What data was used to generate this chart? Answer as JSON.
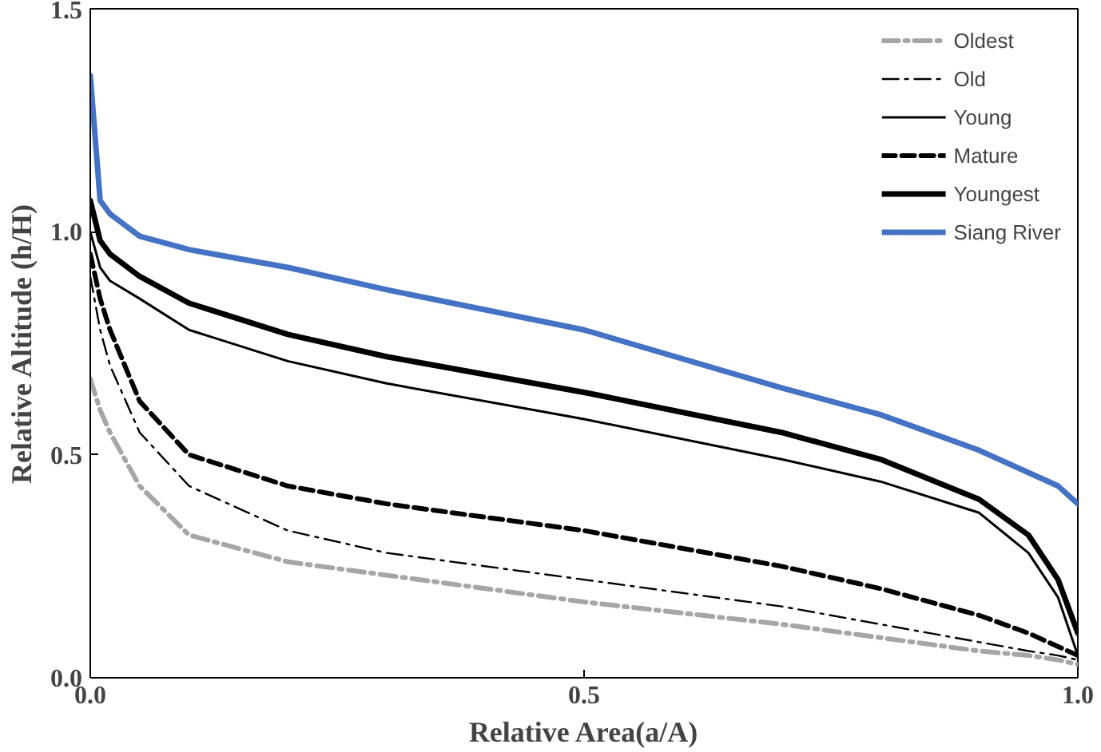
{
  "chart_data": {
    "type": "line",
    "xlabel": "Relative Area(a/A)",
    "ylabel": "Relative Altitude (h/H)",
    "xlim": [
      0,
      1
    ],
    "ylim": [
      0,
      1.5
    ],
    "xticks": [
      {
        "value": 0,
        "label": "0.0"
      },
      {
        "value": 0.5,
        "label": "0.5"
      },
      {
        "value": 1,
        "label": "1.0"
      }
    ],
    "yticks": [
      {
        "value": 0,
        "label": "0.0"
      },
      {
        "value": 0.5,
        "label": "0.5"
      },
      {
        "value": 1,
        "label": "1.0"
      },
      {
        "value": 1.5,
        "label": "1.5"
      }
    ],
    "grid": false,
    "legend": "top right",
    "marker": "none",
    "x": [
      0,
      0.01,
      0.02,
      0.05,
      0.1,
      0.2,
      0.3,
      0.5,
      0.7,
      0.8,
      0.9,
      0.95,
      0.98,
      1.0
    ],
    "series": [
      {
        "name": "Oldest",
        "color": "#a6a6a6",
        "line_style": "dashdot",
        "values": [
          0.67,
          0.6,
          0.55,
          0.43,
          0.32,
          0.26,
          0.23,
          0.17,
          0.12,
          0.09,
          0.06,
          0.05,
          0.04,
          0.03
        ]
      },
      {
        "name": "Old",
        "color": "#000000",
        "line_style": "dashdot",
        "values": [
          0.9,
          0.78,
          0.7,
          0.55,
          0.43,
          0.33,
          0.28,
          0.22,
          0.16,
          0.12,
          0.08,
          0.06,
          0.05,
          0.04
        ]
      },
      {
        "name": "Young",
        "color": "#000000",
        "line_style": "solid",
        "values": [
          1.0,
          0.92,
          0.89,
          0.85,
          0.78,
          0.71,
          0.66,
          0.58,
          0.49,
          0.44,
          0.37,
          0.28,
          0.18,
          0.05
        ]
      },
      {
        "name": "Mature",
        "color": "#000000",
        "line_style": "dashed",
        "values": [
          0.95,
          0.85,
          0.78,
          0.62,
          0.5,
          0.43,
          0.39,
          0.33,
          0.25,
          0.2,
          0.14,
          0.1,
          0.07,
          0.05
        ]
      },
      {
        "name": "Youngest",
        "color": "#000000",
        "line_style": "solid",
        "values": [
          1.07,
          0.98,
          0.95,
          0.9,
          0.84,
          0.77,
          0.72,
          0.64,
          0.55,
          0.49,
          0.4,
          0.32,
          0.22,
          0.1
        ]
      },
      {
        "name": "Siang River",
        "color": "#4472c4",
        "line_style": "solid",
        "values": [
          1.35,
          1.07,
          1.04,
          0.99,
          0.96,
          0.92,
          0.87,
          0.78,
          0.65,
          0.59,
          0.51,
          0.46,
          0.43,
          0.39
        ]
      }
    ]
  }
}
